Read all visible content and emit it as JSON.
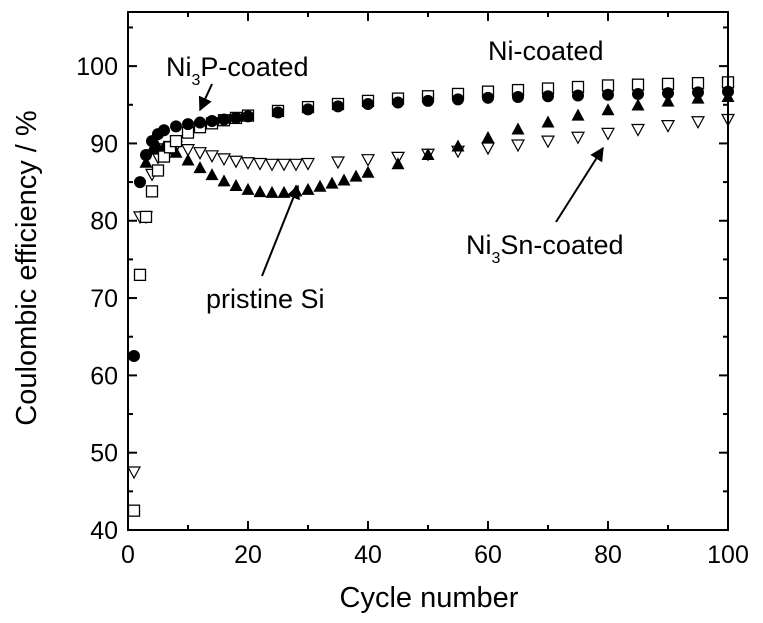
{
  "chart_data": {
    "type": "scatter",
    "xlabel": "Cycle number",
    "ylabel": "Coulombic efficiency / %",
    "xlim": [
      0,
      100
    ],
    "ylim": [
      40,
      107
    ],
    "x_ticks": [
      "0",
      "20",
      "40",
      "60",
      "80",
      "100"
    ],
    "y_ticks": [
      "40",
      "50",
      "60",
      "70",
      "80",
      "90",
      "100"
    ],
    "grid": false,
    "series": [
      {
        "id": "ni3p",
        "marker": "filled-circle",
        "x": [
          1,
          2,
          3,
          4,
          5,
          6,
          8,
          10,
          12,
          14,
          16,
          18,
          20,
          25,
          30,
          35,
          40,
          45,
          50,
          55,
          60,
          65,
          70,
          75,
          80,
          85,
          90,
          95,
          100
        ],
        "y": [
          62.5,
          85,
          88.5,
          90.3,
          91.2,
          91.7,
          92.2,
          92.5,
          92.7,
          92.9,
          93.1,
          93.3,
          93.5,
          94,
          94.4,
          94.8,
          95.1,
          95.3,
          95.5,
          95.7,
          95.9,
          96,
          96.1,
          96.2,
          96.3,
          96.4,
          96.5,
          96.6,
          96.7
        ]
      },
      {
        "id": "ni",
        "marker": "open-square",
        "x": [
          1,
          2,
          3,
          4,
          5,
          6,
          7,
          8,
          10,
          12,
          14,
          16,
          18,
          20,
          25,
          30,
          35,
          40,
          45,
          50,
          55,
          60,
          65,
          70,
          75,
          80,
          85,
          90,
          95,
          100
        ],
        "y": [
          42.5,
          73,
          80.5,
          83.8,
          86.5,
          88.3,
          89.5,
          90.3,
          91.4,
          92.1,
          92.6,
          93,
          93.3,
          93.6,
          94.2,
          94.7,
          95.1,
          95.5,
          95.8,
          96.1,
          96.4,
          96.7,
          96.9,
          97.1,
          97.3,
          97.5,
          97.6,
          97.7,
          97.8,
          97.9
        ]
      },
      {
        "id": "pristine",
        "marker": "filled-triangle",
        "x": [
          3,
          4,
          5,
          6,
          7,
          8,
          10,
          12,
          14,
          16,
          18,
          20,
          22,
          24,
          26,
          28,
          30,
          32,
          34,
          36,
          38,
          40,
          45,
          50,
          55,
          60,
          65,
          70,
          75,
          80,
          85,
          90,
          95,
          100
        ],
        "y": [
          87.5,
          89.2,
          89.5,
          89.5,
          89.2,
          88.8,
          87.8,
          86.8,
          85.9,
          85.1,
          84.5,
          84,
          83.7,
          83.6,
          83.6,
          83.8,
          84,
          84.4,
          84.8,
          85.2,
          85.7,
          86.2,
          87.3,
          88.5,
          89.6,
          90.7,
          91.8,
          92.7,
          93.6,
          94.3,
          94.9,
          95.4,
          95.8,
          96
        ]
      },
      {
        "id": "ni3sn",
        "marker": "open-inverted-triangle",
        "x": [
          1,
          2,
          3,
          4,
          5,
          6,
          7,
          8,
          10,
          12,
          14,
          16,
          18,
          20,
          22,
          24,
          26,
          28,
          30,
          35,
          40,
          45,
          50,
          55,
          60,
          65,
          70,
          75,
          80,
          85,
          90,
          95,
          100
        ],
        "y": [
          47.5,
          80.5,
          80.5,
          86,
          88.2,
          89.3,
          89.6,
          89.6,
          89.2,
          88.8,
          88.4,
          88,
          87.7,
          87.5,
          87.4,
          87.3,
          87.3,
          87.3,
          87.4,
          87.6,
          87.9,
          88.2,
          88.6,
          89,
          89.4,
          89.8,
          90.3,
          90.8,
          91.3,
          91.8,
          92.3,
          92.8,
          93.1
        ]
      }
    ],
    "annotations": [
      {
        "id": "ni3p",
        "pre": "Ni",
        "sub": "3",
        "post": "P-coated"
      },
      {
        "id": "ni",
        "pre": "Ni-coated",
        "sub": "",
        "post": ""
      },
      {
        "id": "ni3sn",
        "pre": "Ni",
        "sub": "3",
        "post": "Sn-coated"
      },
      {
        "id": "pristine",
        "pre": "pristine Si",
        "sub": "",
        "post": ""
      }
    ]
  }
}
